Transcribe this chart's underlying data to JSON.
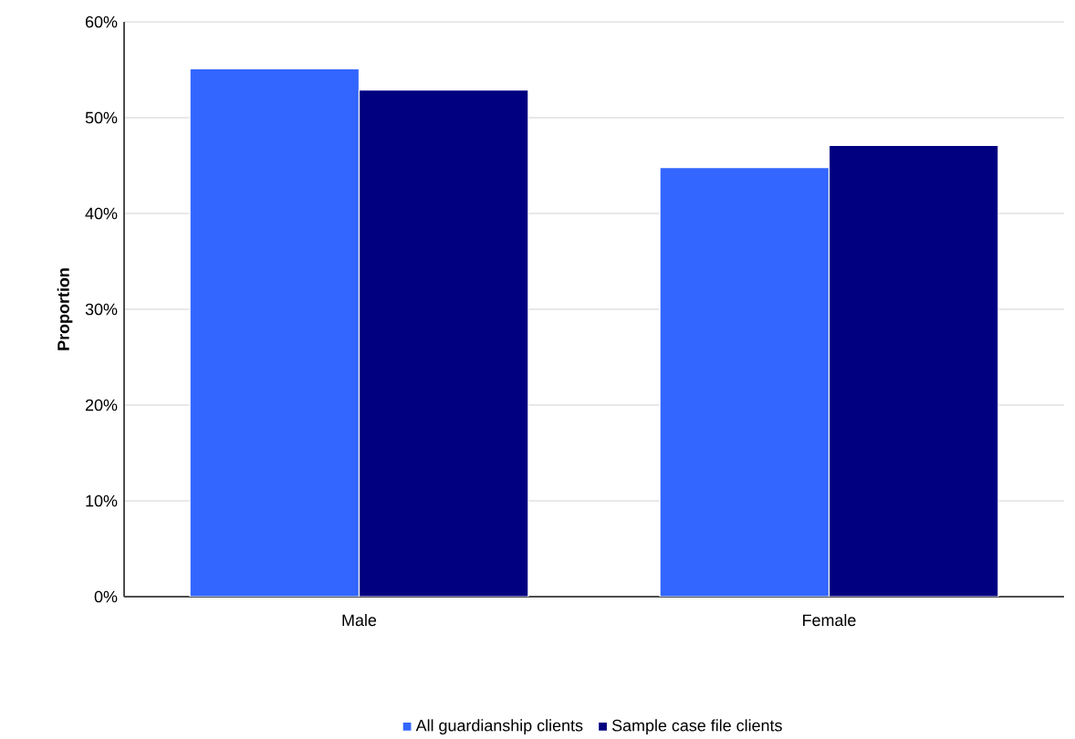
{
  "chart_data": {
    "type": "bar",
    "ylabel": "Proportion",
    "categories": [
      "Male",
      "Female"
    ],
    "series": [
      {
        "name": "All guardianship clients",
        "color": "#3366ff",
        "values": [
          55.1,
          44.8
        ]
      },
      {
        "name": "Sample case file clients",
        "color": "#000080",
        "values": [
          52.9,
          47.1
        ]
      }
    ],
    "ylim": [
      0,
      60
    ],
    "yticks": [
      {
        "value": 0,
        "label": "0%"
      },
      {
        "value": 10,
        "label": "10%"
      },
      {
        "value": 20,
        "label": "20%"
      },
      {
        "value": 30,
        "label": "30%"
      },
      {
        "value": 40,
        "label": "40%"
      },
      {
        "value": 50,
        "label": "50%"
      },
      {
        "value": 60,
        "label": "60%"
      }
    ],
    "grid": "y",
    "legend": "bottom"
  }
}
